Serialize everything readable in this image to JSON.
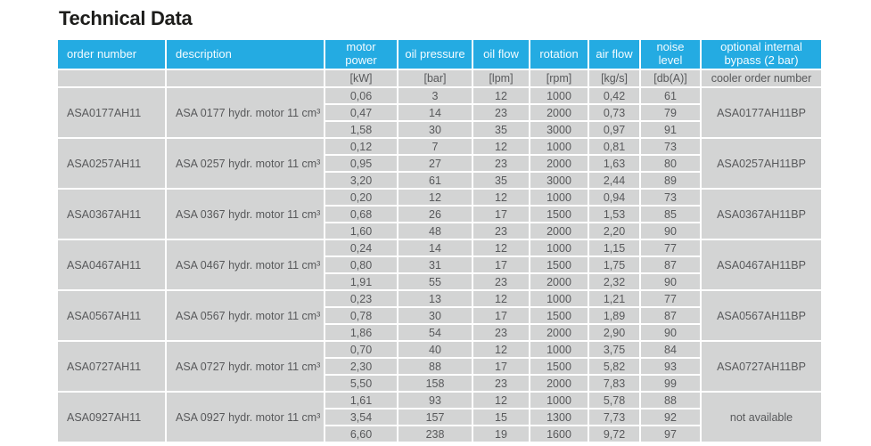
{
  "page": {
    "title": "Technical Data"
  },
  "colors": {
    "header_bg": "#24abe2",
    "header_text": "#f2fbff",
    "cell_bg": "#d3d4d4",
    "body_text": "#58595b",
    "title_text": "#1d1d1b"
  },
  "table": {
    "headers": [
      "order number",
      "description",
      "motor power",
      "oil pressure",
      "oil flow",
      "rotation",
      "air flow",
      "noise level",
      "optional internal bypass (2 bar)"
    ],
    "units": [
      "",
      "",
      "[kW]",
      "[bar]",
      "[lpm]",
      "[rpm]",
      "[kg/s]",
      "[db(A)]",
      "cooler order number"
    ],
    "groups": [
      {
        "order_number": "ASA0177AH11",
        "description": "ASA 0177 hydr. motor 11 cm³",
        "bypass": "ASA0177AH11BP",
        "rows": [
          [
            "0,06",
            "3",
            "12",
            "1000",
            "0,42",
            "61"
          ],
          [
            "0,47",
            "14",
            "23",
            "2000",
            "0,73",
            "79"
          ],
          [
            "1,58",
            "30",
            "35",
            "3000",
            "0,97",
            "91"
          ]
        ]
      },
      {
        "order_number": "ASA0257AH11",
        "description": "ASA 0257 hydr. motor 11 cm³",
        "bypass": "ASA0257AH11BP",
        "rows": [
          [
            "0,12",
            "7",
            "12",
            "1000",
            "0,81",
            "73"
          ],
          [
            "0,95",
            "27",
            "23",
            "2000",
            "1,63",
            "80"
          ],
          [
            "3,20",
            "61",
            "35",
            "3000",
            "2,44",
            "89"
          ]
        ]
      },
      {
        "order_number": "ASA0367AH11",
        "description": "ASA 0367 hydr. motor 11 cm³",
        "bypass": "ASA0367AH11BP",
        "rows": [
          [
            "0,20",
            "12",
            "12",
            "1000",
            "0,94",
            "73"
          ],
          [
            "0,68",
            "26",
            "17",
            "1500",
            "1,53",
            "85"
          ],
          [
            "1,60",
            "48",
            "23",
            "2000",
            "2,20",
            "90"
          ]
        ]
      },
      {
        "order_number": "ASA0467AH11",
        "description": "ASA 0467 hydr. motor 11 cm³",
        "bypass": "ASA0467AH11BP",
        "rows": [
          [
            "0,24",
            "14",
            "12",
            "1000",
            "1,15",
            "77"
          ],
          [
            "0,80",
            "31",
            "17",
            "1500",
            "1,75",
            "87"
          ],
          [
            "1,91",
            "55",
            "23",
            "2000",
            "2,32",
            "90"
          ]
        ]
      },
      {
        "order_number": "ASA0567AH11",
        "description": "ASA 0567 hydr. motor 11 cm³",
        "bypass": "ASA0567AH11BP",
        "rows": [
          [
            "0,23",
            "13",
            "12",
            "1000",
            "1,21",
            "77"
          ],
          [
            "0,78",
            "30",
            "17",
            "1500",
            "1,89",
            "87"
          ],
          [
            "1,86",
            "54",
            "23",
            "2000",
            "2,90",
            "90"
          ]
        ]
      },
      {
        "order_number": "ASA0727AH11",
        "description": "ASA 0727 hydr. motor 11 cm³",
        "bypass": "ASA0727AH11BP",
        "rows": [
          [
            "0,70",
            "40",
            "12",
            "1000",
            "3,75",
            "84"
          ],
          [
            "2,30",
            "88",
            "17",
            "1500",
            "5,82",
            "93"
          ],
          [
            "5,50",
            "158",
            "23",
            "2000",
            "7,83",
            "99"
          ]
        ]
      },
      {
        "order_number": "ASA0927AH11",
        "description": "ASA 0927 hydr. motor 11 cm³",
        "bypass": "not available",
        "rows": [
          [
            "1,61",
            "93",
            "12",
            "1000",
            "5,78",
            "88"
          ],
          [
            "3,54",
            "157",
            "15",
            "1300",
            "7,73",
            "92"
          ],
          [
            "6,60",
            "238",
            "19",
            "1600",
            "9,72",
            "97"
          ]
        ]
      }
    ]
  }
}
